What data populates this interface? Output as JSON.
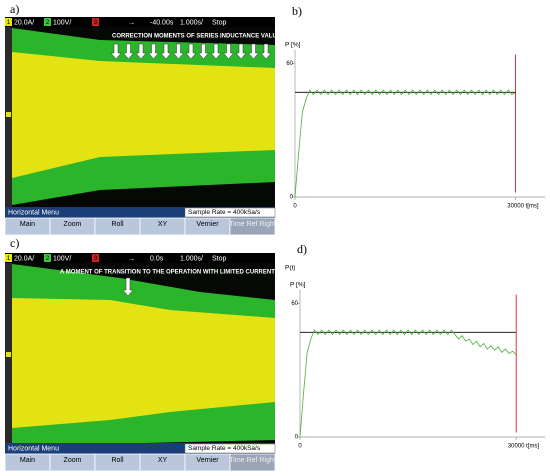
{
  "panels": [
    "a)",
    "b)",
    "c)",
    "d)"
  ],
  "scope_a": {
    "channels": [
      "1",
      "2",
      "3"
    ],
    "status": [
      "20.0A/",
      "100V/",
      "-40.00s",
      "1.000s/",
      "Stop"
    ],
    "annotation": "CORRECTION MOMENTS OF SERIES INDUCTANCE VALUE",
    "menu": "Horizontal Menu",
    "sample_rate": "Sample Rate = 400kSa/s",
    "buttons": [
      "Main",
      "Zoom",
      "Roll",
      "XY",
      "Vernier",
      "Time Ref Right"
    ]
  },
  "scope_c": {
    "channels": [
      "1",
      "2",
      "3"
    ],
    "status": [
      "20.0A/",
      "100V/",
      "0.0s",
      "1.000s/",
      "Stop"
    ],
    "annotation": "A MOMENT OF TRANSITION TO THE OPERATION WITH LIMITED CURRENT",
    "menu": "Horizontal Menu",
    "sample_rate": "Sample Rate = 400kSa/s",
    "buttons": [
      "Main",
      "Zoom",
      "Roll",
      "XY",
      "Vernier",
      "Time Ref Right"
    ]
  },
  "chart_data": [
    {
      "type": "line",
      "y_label": "P [%]",
      "x_label": "t[ms]",
      "xlim": [
        0,
        34000
      ],
      "ylim": [
        0,
        66
      ],
      "xticks": [
        0,
        30000
      ],
      "yticks": [
        0,
        60
      ],
      "series": [
        {
          "color": "#000000",
          "x": [
            0,
            30000
          ],
          "values": [
            47,
            47
          ]
        },
        {
          "color": "#4caf3a",
          "x": [
            0,
            500,
            1000,
            1500,
            2000,
            2500,
            3000,
            3500,
            4000,
            4500,
            5000,
            5500,
            6000,
            6500,
            7000,
            7500,
            8000,
            8500,
            9000,
            9500,
            10000,
            10500,
            11000,
            11500,
            12000,
            12500,
            13000,
            13500,
            14000,
            14500,
            15000,
            15500,
            16000,
            16500,
            17000,
            17500,
            18000,
            18500,
            19000,
            19500,
            20000,
            20500,
            21000,
            21500,
            22000,
            22500,
            23000,
            23500,
            24000,
            24500,
            25000,
            25500,
            26000,
            26500,
            27000,
            27500,
            28000,
            28500,
            29000,
            29500,
            30000
          ],
          "values": [
            0,
            20,
            38,
            44,
            48,
            46,
            48,
            46,
            48,
            46,
            48,
            46,
            48,
            46,
            48,
            46,
            48,
            46,
            48,
            46,
            48,
            46,
            48,
            46,
            48,
            46,
            48,
            46,
            48,
            46,
            48,
            46,
            48,
            46,
            48,
            46,
            48,
            46,
            48,
            46,
            48,
            46,
            48,
            46,
            48,
            46,
            48,
            46,
            48,
            46,
            48,
            46,
            48,
            46,
            48,
            46,
            48,
            46,
            48,
            46,
            47
          ]
        },
        {
          "color": "#e00000",
          "x": [
            30000,
            30000
          ],
          "values": [
            2,
            64
          ]
        }
      ]
    },
    {
      "type": "line",
      "title": "P(t)",
      "y_label": "P [%]",
      "x_label": "t[ms]",
      "xlim": [
        0,
        34000
      ],
      "ylim": [
        0,
        66
      ],
      "xticks": [
        0,
        30000
      ],
      "yticks": [
        0,
        60
      ],
      "series": [
        {
          "color": "#000000",
          "x": [
            0,
            30000
          ],
          "values": [
            47,
            47
          ]
        },
        {
          "color": "#4caf3a",
          "x": [
            0,
            500,
            1000,
            1500,
            2000,
            2500,
            3000,
            3500,
            4000,
            4500,
            5000,
            5500,
            6000,
            6500,
            7000,
            7500,
            8000,
            8500,
            9000,
            9500,
            10000,
            10500,
            11000,
            11500,
            12000,
            12500,
            13000,
            13500,
            14000,
            14500,
            15000,
            15500,
            16000,
            16500,
            17000,
            17500,
            18000,
            18500,
            19000,
            19500,
            20000,
            20500,
            21000,
            21500,
            22000,
            22500,
            23000,
            23500,
            24000,
            24500,
            25000,
            25500,
            26000,
            26500,
            27000,
            27500,
            28000,
            28500,
            29000,
            29500,
            30000
          ],
          "values": [
            0,
            20,
            38,
            44,
            48,
            46,
            48,
            46,
            48,
            46,
            48,
            46,
            48,
            46,
            48,
            46,
            48,
            46,
            48,
            46,
            48,
            46,
            48,
            46,
            48,
            46,
            48,
            46,
            48,
            46,
            48,
            46,
            48,
            46,
            48,
            46,
            48,
            46,
            48,
            46,
            48,
            46,
            48,
            46,
            44,
            45.5,
            43,
            44,
            41.5,
            43,
            40.5,
            42,
            39.5,
            41,
            39,
            40.5,
            38,
            39.5,
            37.5,
            38.5,
            37
          ]
        },
        {
          "color": "#e00000",
          "x": [
            30000,
            30000
          ],
          "values": [
            2,
            64
          ]
        }
      ]
    }
  ]
}
